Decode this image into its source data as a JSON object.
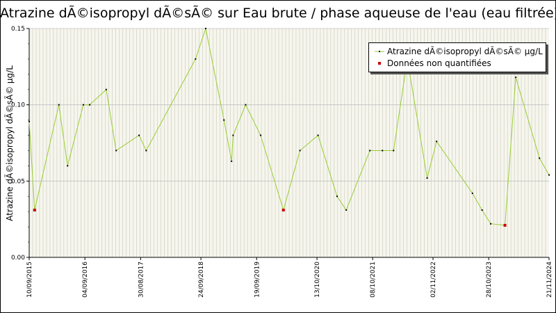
{
  "chart_data": {
    "type": "line",
    "title": "Atrazine dÃ©isopropyl dÃ©sÃ© sur Eau brute / phase aqueuse de l'eau (eau filtrée)",
    "xlabel": "",
    "ylabel": "Atrazine dÃ©isopropyl dÃ©sÃ© µg/L",
    "x_axis_type": "date",
    "xlim": [
      "2015-09-10",
      "2024-11-21"
    ],
    "ylim": [
      0,
      0.15
    ],
    "y_ticks": [
      "0.00",
      "0.05",
      "0.10",
      "0.15"
    ],
    "x_tick_labels": [
      "10/09/2015",
      "04/09/2016",
      "30/08/2017",
      "24/09/2018",
      "19/09/2019",
      "13/10/2020",
      "08/10/2021",
      "02/11/2022",
      "28/10/2023",
      "21/11/2024"
    ],
    "x_tick_dates": [
      "2015-09-10",
      "2016-09-04",
      "2017-08-30",
      "2018-09-24",
      "2019-09-19",
      "2020-10-13",
      "2021-10-08",
      "2022-11-02",
      "2023-10-28",
      "2024-11-21"
    ],
    "grid": true,
    "legend_position": "top-right",
    "series": [
      {
        "name": "Atrazine dÃ©isopropyl dÃ©sÃ© µg/L",
        "color": "#99cc33",
        "marker_color": "#000000",
        "x": [
          "2015-09-10",
          "2015-10-15",
          "2016-03-20",
          "2016-05-15",
          "2016-08-25",
          "2016-10-05",
          "2017-01-20",
          "2017-03-25",
          "2017-08-20",
          "2017-10-05",
          "2018-08-20",
          "2018-10-25",
          "2019-02-20",
          "2019-04-10",
          "2019-04-20",
          "2019-07-10",
          "2019-10-15",
          "2020-03-10",
          "2020-06-25",
          "2020-10-20",
          "2021-02-20",
          "2021-04-20",
          "2021-09-20",
          "2021-12-10",
          "2022-02-20",
          "2022-05-20",
          "2022-09-25",
          "2022-11-25",
          "2023-07-15",
          "2023-09-15",
          "2023-11-10",
          "2024-02-10",
          "2024-04-20",
          "2024-09-20",
          "2024-11-21"
        ],
        "values": [
          0.089,
          0.031,
          0.1,
          0.06,
          0.1,
          0.1,
          0.11,
          0.07,
          0.08,
          0.07,
          0.13,
          0.15,
          0.09,
          0.063,
          0.08,
          0.1,
          0.08,
          0.031,
          0.07,
          0.08,
          0.04,
          0.031,
          0.07,
          0.07,
          0.07,
          0.13,
          0.052,
          0.076,
          0.042,
          0.031,
          0.022,
          0.021,
          0.118,
          0.065,
          0.054
        ],
        "not_quantified": [
          false,
          true,
          false,
          false,
          false,
          false,
          false,
          false,
          false,
          false,
          false,
          false,
          false,
          false,
          false,
          false,
          false,
          true,
          false,
          false,
          false,
          false,
          false,
          false,
          false,
          false,
          false,
          false,
          false,
          false,
          false,
          true,
          false,
          false,
          false
        ]
      }
    ],
    "legend": [
      {
        "label": "Atrazine dÃ©isopropyl dÃ©sÃ© µg/L",
        "symbol": "line-dot",
        "color": "#99cc33",
        "marker_color": "#000000"
      },
      {
        "label": "Données non quantifiées",
        "symbol": "dot",
        "color": "#cc0000"
      }
    ]
  }
}
